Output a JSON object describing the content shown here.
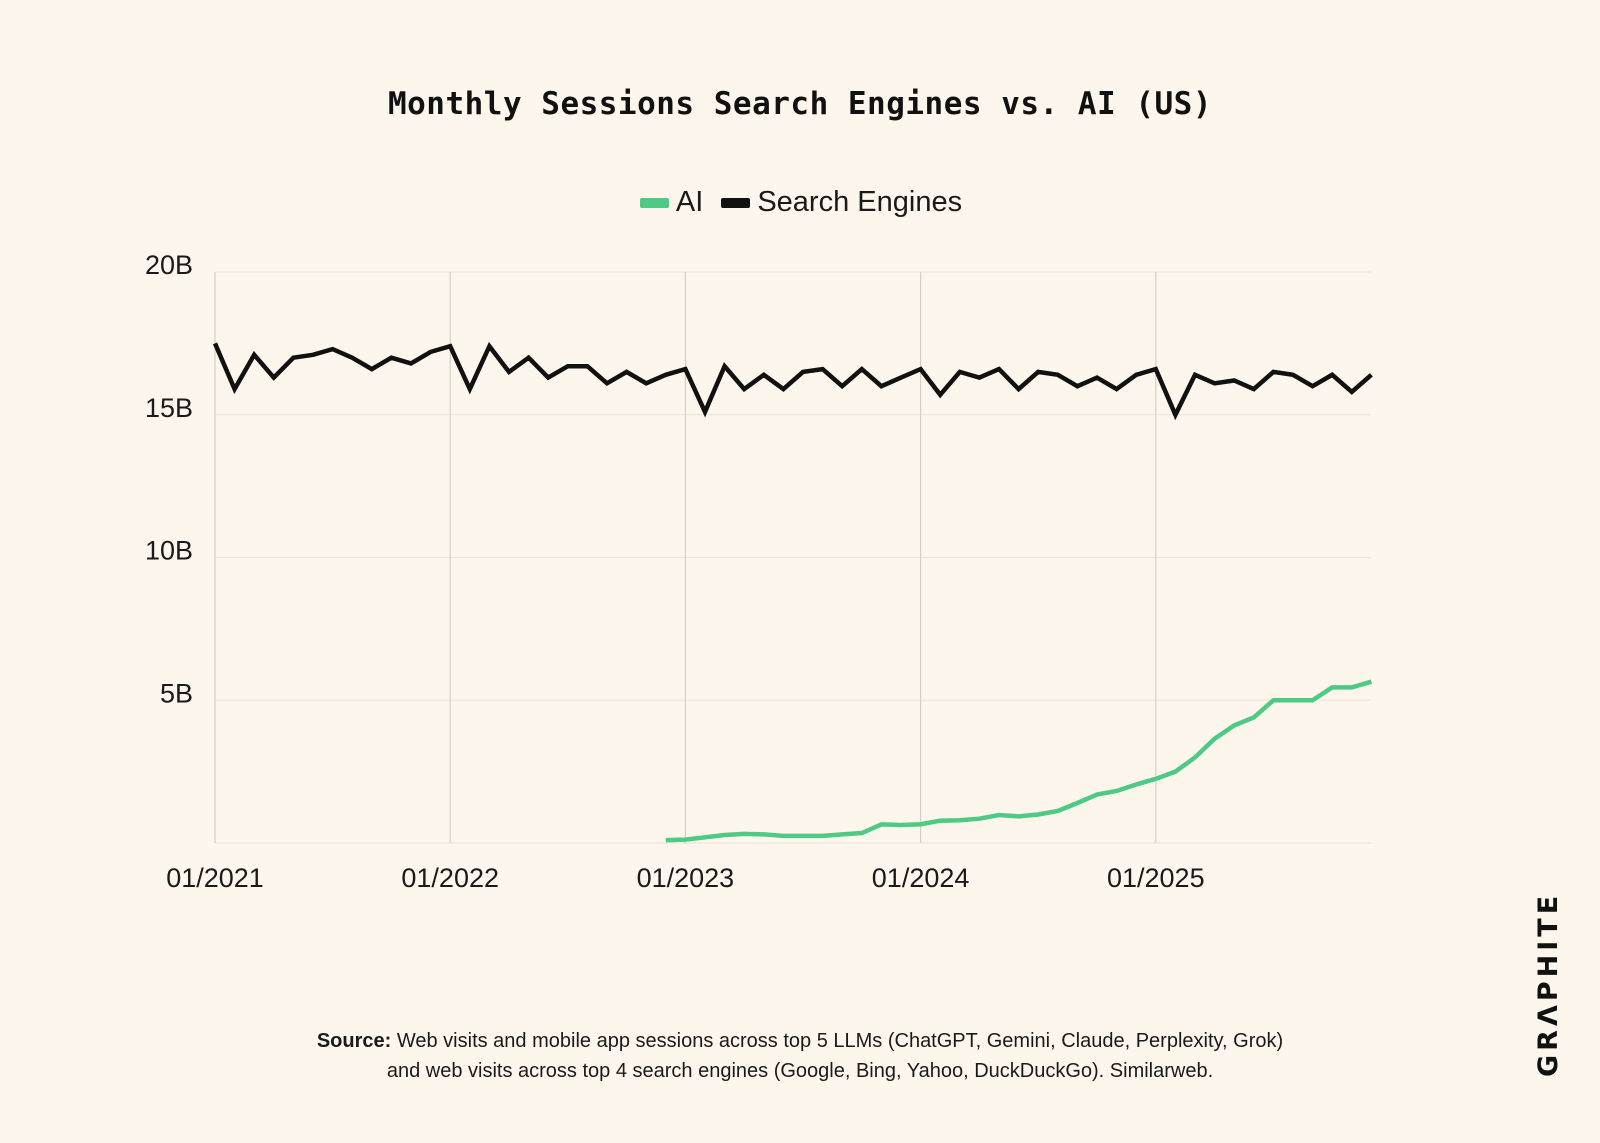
{
  "chart_data": {
    "type": "line",
    "title": "Monthly Sessions Search Engines vs. AI (US)",
    "x_start": "01/2021",
    "x_tick_labels": [
      "01/2021",
      "01/2022",
      "01/2023",
      "01/2024",
      "01/2025"
    ],
    "y_tick_labels": [
      "20B",
      "15B",
      "10B",
      "5B"
    ],
    "y_ticks": [
      20,
      15,
      10,
      5
    ],
    "ylim": [
      0,
      20
    ],
    "y_unit": "B",
    "grid": "vertical and horizontal gridlines",
    "legend_position": "top-center",
    "legend": [
      "AI",
      "Search Engines"
    ],
    "series": [
      {
        "name": "AI",
        "color": "#4fca84",
        "start_index": 23,
        "values": [
          0.1,
          0.12,
          0.2,
          0.28,
          0.32,
          0.3,
          0.25,
          0.25,
          0.25,
          0.3,
          0.35,
          0.65,
          0.63,
          0.66,
          0.78,
          0.8,
          0.85,
          0.98,
          0.93,
          1.0,
          1.12,
          1.4,
          1.7,
          1.82,
          2.05,
          2.25,
          2.5,
          3.0,
          3.65,
          4.12,
          4.4,
          5.0,
          5.0,
          5.0,
          5.45,
          5.45,
          5.65
        ]
      },
      {
        "name": "Search Engines",
        "color": "#111111",
        "start_index": 0,
        "values": [
          17.5,
          15.9,
          17.1,
          16.3,
          17.0,
          17.1,
          17.3,
          17.0,
          16.6,
          17.0,
          16.8,
          17.2,
          17.4,
          15.9,
          17.4,
          16.5,
          17.0,
          16.3,
          16.7,
          16.7,
          16.1,
          16.5,
          16.1,
          16.4,
          16.6,
          15.1,
          16.7,
          15.9,
          16.4,
          15.9,
          16.5,
          16.6,
          16.0,
          16.6,
          16.0,
          16.3,
          16.6,
          15.7,
          16.5,
          16.3,
          16.6,
          15.9,
          16.5,
          16.4,
          16.0,
          16.3,
          15.9,
          16.4,
          16.6,
          15.0,
          16.4,
          16.1,
          16.2,
          15.9,
          16.5,
          16.4,
          16.0,
          16.4,
          15.8,
          16.4
        ]
      }
    ]
  },
  "source": {
    "label": "Source:",
    "line1": "Web visits and mobile app sessions across top 5 LLMs (ChatGPT, Gemini, Claude, Perplexity, Grok)",
    "line2": "and web visits across top 4 search engines (Google, Bing, Yahoo, DuckDuckGo). Similarweb."
  },
  "brand": {
    "logo_text": "GRAPHITE"
  }
}
